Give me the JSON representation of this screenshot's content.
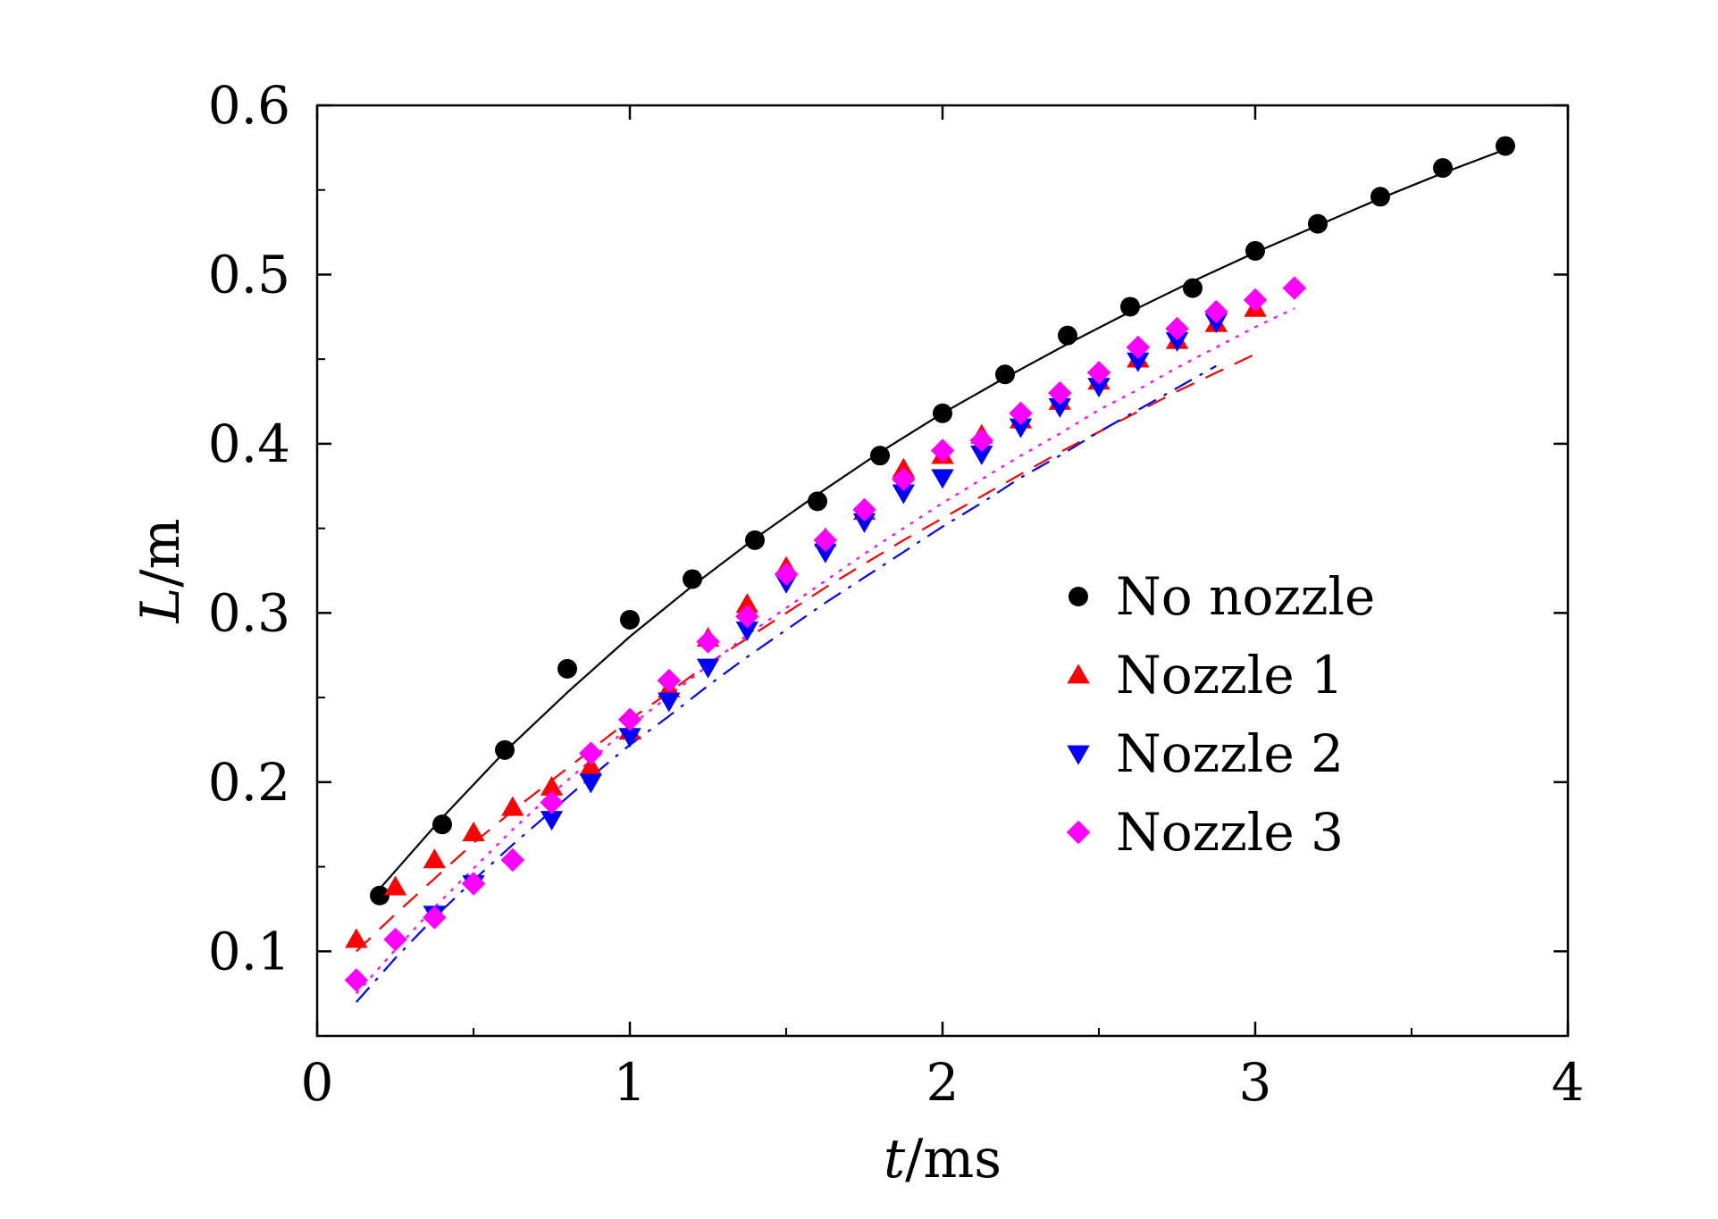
{
  "chart_data": {
    "type": "scatter",
    "title": "",
    "xlabel": {
      "italic": "t",
      "unit": "/ms"
    },
    "ylabel": {
      "italic": "L",
      "unit": "/m"
    },
    "xlim": [
      0,
      4
    ],
    "ylim": [
      0.05,
      0.6
    ],
    "xticks": [
      0,
      1,
      2,
      3,
      4
    ],
    "xtick_labels": [
      "0",
      "1",
      "2",
      "3",
      "4"
    ],
    "yticks": [
      0.1,
      0.2,
      0.3,
      0.4,
      0.5,
      0.6
    ],
    "ytick_labels": [
      "0.1",
      "0.2",
      "0.3",
      "0.4",
      "0.5",
      "0.6"
    ],
    "x_minor_step": 0.5,
    "y_minor_step": 0.05,
    "grid": false,
    "legend_position": "center-right",
    "series": [
      {
        "name": "No nozzle",
        "marker": "circle",
        "color": "#000000",
        "fit_line": "solid",
        "fit_color": "#000000",
        "x": [
          0.2,
          0.4,
          0.6,
          0.8,
          1.0,
          1.2,
          1.4,
          1.6,
          1.8,
          2.0,
          2.2,
          2.4,
          2.6,
          2.8,
          3.0,
          3.2,
          3.4,
          3.6,
          3.8
        ],
        "y": [
          0.133,
          0.175,
          0.219,
          0.267,
          0.296,
          0.32,
          0.343,
          0.366,
          0.393,
          0.418,
          0.441,
          0.464,
          0.481,
          0.492,
          0.514,
          0.53,
          0.546,
          0.563,
          0.576
        ],
        "fit_x": [
          0.2,
          0.4,
          0.6,
          0.8,
          1.0,
          1.2,
          1.4,
          1.6,
          1.8,
          2.0,
          2.2,
          2.4,
          2.6,
          2.8,
          3.0,
          3.2,
          3.4,
          3.6,
          3.8
        ],
        "fit_y": [
          0.137,
          0.179,
          0.218,
          0.253,
          0.286,
          0.316,
          0.344,
          0.37,
          0.395,
          0.418,
          0.439,
          0.459,
          0.478,
          0.496,
          0.513,
          0.529,
          0.545,
          0.56,
          0.574
        ]
      },
      {
        "name": "Nozzle 1",
        "marker": "triangle-up",
        "color": "#ff0000",
        "fit_line": "dashed",
        "fit_color": "#ff0000",
        "x": [
          0.125,
          0.25,
          0.375,
          0.5,
          0.625,
          0.75,
          0.875,
          1.0,
          1.125,
          1.25,
          1.375,
          1.5,
          1.625,
          1.75,
          1.875,
          2.0,
          2.125,
          2.25,
          2.375,
          2.5,
          2.625,
          2.75,
          2.875,
          3.0
        ],
        "y": [
          0.107,
          0.138,
          0.154,
          0.17,
          0.185,
          0.197,
          0.209,
          0.23,
          0.255,
          0.285,
          0.305,
          0.327,
          0.344,
          0.36,
          0.385,
          0.393,
          0.405,
          0.414,
          0.425,
          0.437,
          0.45,
          0.461,
          0.471,
          0.48
        ],
        "fit_x": [
          0.125,
          0.25,
          0.375,
          0.5,
          0.625,
          0.75,
          0.875,
          1.0,
          1.125,
          1.25,
          1.375,
          1.5,
          1.625,
          1.75,
          1.875,
          2.0,
          2.125,
          2.25,
          2.375,
          2.5,
          2.625,
          2.75,
          2.875,
          3.0
        ],
        "fit_y": [
          0.1,
          0.122,
          0.143,
          0.164,
          0.183,
          0.201,
          0.219,
          0.237,
          0.253,
          0.27,
          0.285,
          0.3,
          0.315,
          0.329,
          0.343,
          0.356,
          0.369,
          0.382,
          0.395,
          0.407,
          0.419,
          0.431,
          0.442,
          0.453
        ]
      },
      {
        "name": "Nozzle 2",
        "marker": "triangle-down",
        "color": "#0000ff",
        "fit_line": "dash-dot",
        "fit_color": "#0000ff",
        "x": [
          0.375,
          0.5,
          0.75,
          0.875,
          1.0,
          1.125,
          1.25,
          1.375,
          1.5,
          1.625,
          1.75,
          1.875,
          2.0,
          2.125,
          2.25,
          2.375,
          2.5,
          2.625,
          2.75,
          2.875
        ],
        "y": [
          0.122,
          0.14,
          0.178,
          0.2,
          0.227,
          0.248,
          0.268,
          0.29,
          0.318,
          0.336,
          0.354,
          0.371,
          0.38,
          0.394,
          0.41,
          0.422,
          0.434,
          0.449,
          0.461,
          0.472
        ],
        "fit_x": [
          0.125,
          0.25,
          0.375,
          0.5,
          0.625,
          0.75,
          0.875,
          1.0,
          1.125,
          1.25,
          1.375,
          1.5,
          1.625,
          1.75,
          1.875,
          2.0,
          2.125,
          2.25,
          2.375,
          2.5,
          2.625,
          2.75,
          2.875
        ],
        "fit_y": [
          0.07,
          0.096,
          0.12,
          0.142,
          0.163,
          0.183,
          0.203,
          0.222,
          0.239,
          0.257,
          0.274,
          0.29,
          0.306,
          0.321,
          0.336,
          0.351,
          0.365,
          0.38,
          0.393,
          0.407,
          0.42,
          0.433,
          0.446
        ]
      },
      {
        "name": "Nozzle 3",
        "marker": "diamond",
        "color": "#ff00ff",
        "fit_line": "dotted",
        "fit_color": "#ff00ff",
        "x": [
          0.125,
          0.25,
          0.375,
          0.5,
          0.625,
          0.75,
          0.875,
          1.0,
          1.125,
          1.25,
          1.375,
          1.5,
          1.625,
          1.75,
          1.875,
          2.0,
          2.125,
          2.25,
          2.375,
          2.5,
          2.625,
          2.75,
          2.875,
          3.0,
          3.125
        ],
        "y": [
          0.083,
          0.107,
          0.12,
          0.14,
          0.154,
          0.188,
          0.217,
          0.237,
          0.26,
          0.283,
          0.298,
          0.323,
          0.343,
          0.361,
          0.379,
          0.396,
          0.402,
          0.418,
          0.43,
          0.442,
          0.457,
          0.468,
          0.478,
          0.485,
          0.492
        ],
        "fit_x": [
          0.125,
          0.25,
          0.375,
          0.5,
          0.625,
          0.75,
          0.875,
          1.0,
          1.125,
          1.25,
          1.375,
          1.5,
          1.625,
          1.75,
          1.875,
          2.0,
          2.125,
          2.25,
          2.375,
          2.5,
          2.625,
          2.75,
          2.875,
          3.0,
          3.125
        ],
        "fit_y": [
          0.075,
          0.101,
          0.126,
          0.149,
          0.172,
          0.193,
          0.213,
          0.233,
          0.251,
          0.269,
          0.287,
          0.303,
          0.319,
          0.335,
          0.35,
          0.365,
          0.379,
          0.393,
          0.406,
          0.42,
          0.432,
          0.445,
          0.457,
          0.469,
          0.48
        ]
      }
    ]
  }
}
